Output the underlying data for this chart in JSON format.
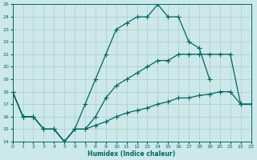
{
  "title": "",
  "xlabel": "Humidex (Indice chaleur)",
  "xlim": [
    0,
    23
  ],
  "ylim": [
    14,
    25
  ],
  "yticks": [
    14,
    15,
    16,
    17,
    18,
    19,
    20,
    21,
    22,
    23,
    24,
    25
  ],
  "xticks": [
    0,
    1,
    2,
    3,
    4,
    5,
    6,
    7,
    8,
    9,
    10,
    11,
    12,
    13,
    14,
    15,
    16,
    17,
    18,
    19,
    20,
    21,
    22,
    23
  ],
  "background_color": "#cce8e8",
  "grid_color": "#aacccc",
  "line_color": "#006666",
  "line_width": 0.9,
  "marker": "+",
  "marker_size": 4,
  "lines": [
    {
      "x": [
        0,
        1,
        2,
        3,
        4,
        5,
        6,
        7,
        8,
        9,
        10,
        11,
        12,
        13,
        14,
        15,
        16,
        17,
        18,
        19,
        20,
        21,
        22,
        23
      ],
      "y": [
        18,
        16,
        16,
        15,
        15,
        14,
        15,
        17,
        19,
        21,
        23,
        23.5,
        24,
        24,
        25,
        24,
        24,
        22,
        21.5,
        19,
        null,
        null,
        17,
        17
      ]
    },
    {
      "x": [
        0,
        1,
        2,
        3,
        4,
        5,
        6,
        7,
        8,
        9,
        10,
        11,
        12,
        13,
        14,
        15,
        16,
        17,
        18,
        19,
        20,
        21,
        22,
        23
      ],
      "y": [
        18,
        16,
        16,
        15,
        15,
        14,
        15,
        15,
        16,
        17.5,
        18.5,
        19,
        19.5,
        20,
        20.5,
        20.5,
        21,
        21,
        21,
        21,
        21,
        21,
        17,
        17
      ]
    },
    {
      "x": [
        0,
        1,
        2,
        3,
        4,
        5,
        6,
        7,
        8,
        9,
        10,
        11,
        12,
        13,
        14,
        15,
        16,
        17,
        18,
        19,
        20,
        21,
        22,
        23
      ],
      "y": [
        18,
        16,
        16,
        15,
        15,
        14,
        15,
        15,
        15.3,
        15.6,
        16,
        16.3,
        16.5,
        16.7,
        17,
        17.2,
        17.5,
        17.5,
        17.7,
        17.8,
        18,
        18,
        17,
        17
      ]
    }
  ]
}
